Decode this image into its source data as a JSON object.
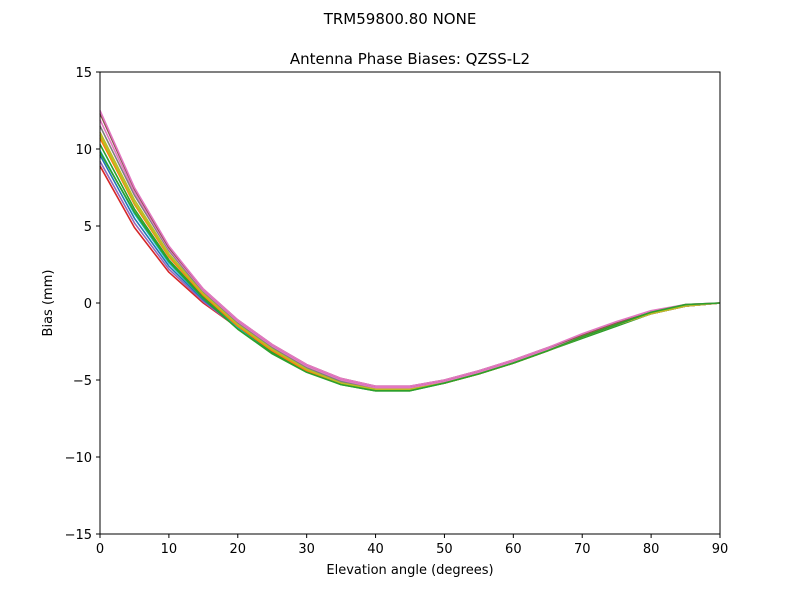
{
  "chart_data": {
    "type": "line",
    "suptitle": "TRM59800.80     NONE",
    "title": "Antenna Phase Biases: QZSS-L2",
    "xlabel": "Elevation angle (degrees)",
    "ylabel": "Bias (mm)",
    "xlim": [
      0,
      90
    ],
    "ylim": [
      -15,
      15
    ],
    "xticks": [
      0,
      10,
      20,
      30,
      40,
      50,
      60,
      70,
      80,
      90
    ],
    "yticks": [
      -15,
      -10,
      -5,
      0,
      5,
      10,
      15
    ],
    "xtick_labels": [
      "0",
      "10",
      "20",
      "30",
      "40",
      "50",
      "60",
      "70",
      "80",
      "90"
    ],
    "ytick_labels": [
      "−15",
      "−10",
      "−5",
      "0",
      "5",
      "10",
      "15"
    ],
    "grid": false,
    "x": [
      0,
      5,
      10,
      15,
      20,
      25,
      30,
      35,
      40,
      45,
      50,
      55,
      60,
      65,
      70,
      75,
      80,
      85,
      90
    ],
    "series": [
      {
        "color": "#d62728",
        "values": [
          8.9,
          4.9,
          2.0,
          0.0,
          -1.6,
          -3.1,
          -4.3,
          -5.1,
          -5.5,
          -5.5,
          -5.1,
          -4.5,
          -3.8,
          -3.0,
          -2.2,
          -1.4,
          -0.7,
          -0.2,
          0.0
        ]
      },
      {
        "color": "#9467bd",
        "values": [
          9.2,
          5.2,
          2.2,
          0.1,
          -1.6,
          -3.1,
          -4.3,
          -5.1,
          -5.5,
          -5.5,
          -5.1,
          -4.5,
          -3.8,
          -3.0,
          -2.2,
          -1.4,
          -0.7,
          -0.2,
          0.0
        ]
      },
      {
        "color": "#1f77b4",
        "values": [
          9.6,
          5.5,
          2.4,
          0.2,
          -1.6,
          -3.1,
          -4.3,
          -5.2,
          -5.6,
          -5.6,
          -5.1,
          -4.5,
          -3.8,
          -3.0,
          -2.2,
          -1.4,
          -0.7,
          -0.2,
          0.0
        ]
      },
      {
        "color": "#17becf",
        "values": [
          9.9,
          5.8,
          2.6,
          0.3,
          -1.6,
          -3.2,
          -4.4,
          -5.2,
          -5.6,
          -5.6,
          -5.2,
          -4.5,
          -3.8,
          -3.0,
          -2.2,
          -1.4,
          -0.7,
          -0.2,
          0.0
        ]
      },
      {
        "color": "#2ca02c",
        "values": [
          10.3,
          6.1,
          2.8,
          0.4,
          -1.5,
          -3.2,
          -4.4,
          -5.3,
          -5.7,
          -5.7,
          -5.2,
          -4.6,
          -3.9,
          -3.1,
          -2.3,
          -1.5,
          -0.7,
          -0.2,
          0.0
        ]
      },
      {
        "color": "#ff7f0e",
        "values": [
          10.7,
          6.4,
          3.0,
          0.5,
          -1.5,
          -3.1,
          -4.4,
          -5.2,
          -5.6,
          -5.6,
          -5.2,
          -4.6,
          -3.9,
          -3.1,
          -2.2,
          -1.4,
          -0.7,
          -0.2,
          0.0
        ]
      },
      {
        "color": "#bcbd22",
        "values": [
          11.1,
          6.7,
          3.2,
          0.6,
          -1.4,
          -3.0,
          -4.3,
          -5.2,
          -5.6,
          -5.6,
          -5.2,
          -4.6,
          -3.9,
          -3.1,
          -2.2,
          -1.4,
          -0.7,
          -0.2,
          0.0
        ]
      },
      {
        "color": "#7f7f7f",
        "values": [
          11.5,
          7.0,
          3.4,
          0.7,
          -1.3,
          -2.9,
          -4.2,
          -5.1,
          -5.6,
          -5.6,
          -5.2,
          -4.6,
          -3.9,
          -3.1,
          -2.2,
          -1.4,
          -0.7,
          -0.2,
          0.0
        ]
      },
      {
        "color": "#e377c2",
        "values": [
          11.9,
          7.2,
          3.5,
          0.8,
          -1.2,
          -2.8,
          -4.1,
          -5.0,
          -5.5,
          -5.5,
          -5.1,
          -4.5,
          -3.8,
          -3.0,
          -2.2,
          -1.4,
          -0.7,
          -0.2,
          0.0
        ]
      },
      {
        "color": "#8c564b",
        "values": [
          12.3,
          7.4,
          3.6,
          0.9,
          -1.1,
          -2.7,
          -4.0,
          -4.9,
          -5.4,
          -5.4,
          -5.0,
          -4.4,
          -3.7,
          -2.9,
          -2.1,
          -1.3,
          -0.6,
          -0.1,
          0.0
        ]
      },
      {
        "color": "#bcbd22",
        "values": [
          10.9,
          6.5,
          3.1,
          0.6,
          -1.4,
          -3.0,
          -4.3,
          -5.2,
          -5.6,
          -5.6,
          -5.2,
          -4.6,
          -3.9,
          -3.1,
          -2.2,
          -1.4,
          -0.7,
          -0.2,
          0.0
        ]
      },
      {
        "color": "#e377c2",
        "values": [
          12.5,
          7.5,
          3.7,
          0.9,
          -1.1,
          -2.7,
          -4.0,
          -4.9,
          -5.4,
          -5.4,
          -5.0,
          -4.4,
          -3.7,
          -2.9,
          -2.0,
          -1.2,
          -0.5,
          -0.1,
          0.0
        ]
      },
      {
        "color": "#2ca02c",
        "values": [
          9.8,
          5.9,
          2.7,
          0.3,
          -1.7,
          -3.3,
          -4.5,
          -5.3,
          -5.7,
          -5.7,
          -5.2,
          -4.6,
          -3.9,
          -3.1,
          -2.2,
          -1.4,
          -0.6,
          -0.1,
          0.0
        ]
      }
    ]
  }
}
